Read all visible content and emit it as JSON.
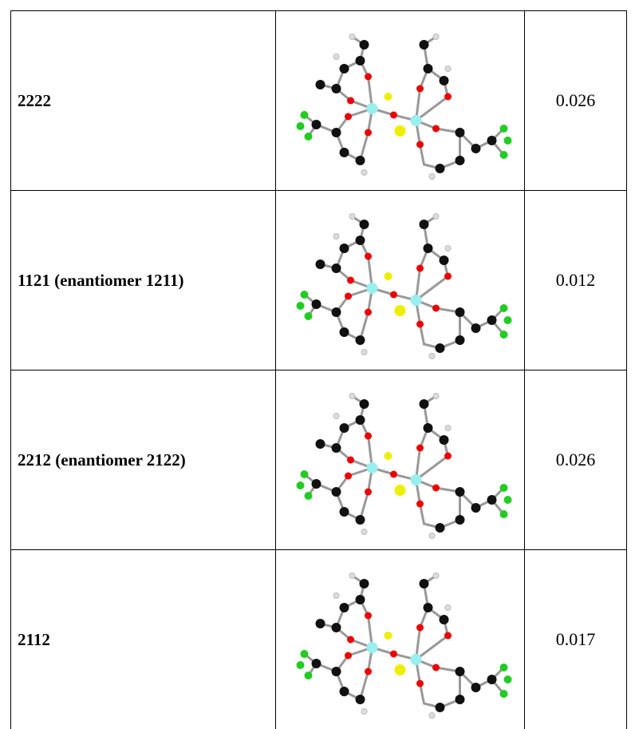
{
  "table": {
    "rows": [
      [
        "2222",
        "0.026"
      ],
      [
        "1121 (enantiomer 1211)",
        "0.012"
      ],
      [
        "2212 (enantiomer 2122)",
        "0.026"
      ],
      [
        "2112",
        "0.017"
      ]
    ]
  }
}
